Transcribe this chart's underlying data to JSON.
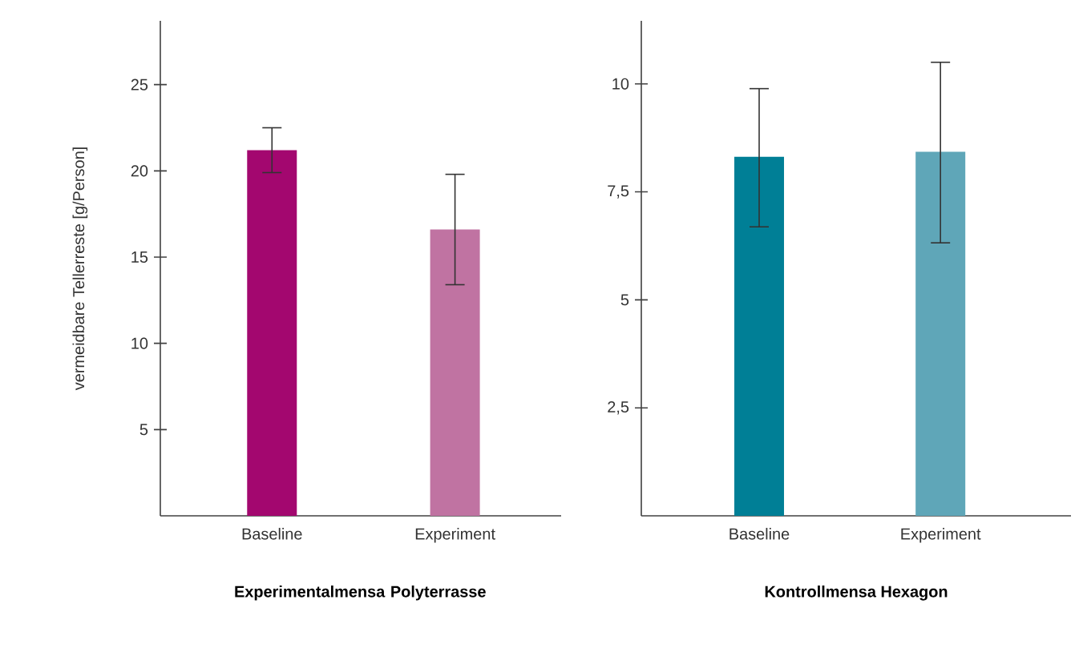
{
  "chart_data": [
    {
      "type": "bar",
      "xlabel": "Experimentalmensa Polyterrasse",
      "ylabel": "vermeidbare Tellerreste [g/Person]",
      "categories": [
        "Baseline",
        "Experiment"
      ],
      "values": [
        21.2,
        16.6
      ],
      "colors": [
        "#a3076f",
        "#c073a2"
      ],
      "errors": [
        [
          19.9,
          22.5
        ],
        [
          13.4,
          19.8
        ]
      ],
      "ylim": [
        0,
        28.7
      ],
      "yticks": [
        5,
        10,
        15,
        20,
        25
      ],
      "grid": false
    },
    {
      "type": "bar",
      "xlabel": "Kontrollmensa Hexagon",
      "categories": [
        "Baseline",
        "Experiment"
      ],
      "values": [
        8.31,
        8.43
      ],
      "colors": [
        "#007f96",
        "#5fa6b8"
      ],
      "errors": [
        [
          6.69,
          9.89
        ],
        [
          6.32,
          10.5
        ]
      ],
      "ylim": [
        0,
        11.46
      ],
      "yticks": [
        {
          "value": 2.5,
          "label": "2,5"
        },
        5,
        {
          "value": 7.5,
          "label": "7,5"
        },
        10
      ],
      "grid": false
    }
  ]
}
